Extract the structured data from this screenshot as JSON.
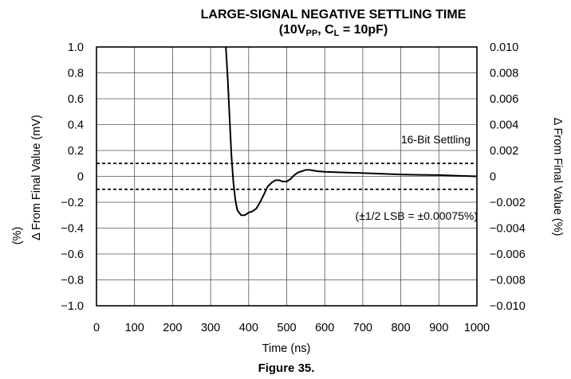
{
  "chart_data": {
    "type": "line",
    "title_line1": "LARGE-SIGNAL NEGATIVE SETTLING TIME",
    "title_line2_prefix": "(10V",
    "title_line2_sub1": "PP",
    "title_line2_mid": ", C",
    "title_line2_sub2": "L",
    "title_line2_suffix": " = 10pF)",
    "xlabel": "Time (ns)",
    "ylabel_left": "Δ From Final Value (mV)",
    "ylabel_left_outer": "(%)",
    "ylabel_right": "Δ From Final Value (%)",
    "xlim": [
      0,
      1000
    ],
    "ylim_left": [
      -1.0,
      1.0
    ],
    "ylim_right": [
      -0.01,
      0.01
    ],
    "x_ticks": [
      "0",
      "100",
      "200",
      "300",
      "400",
      "500",
      "600",
      "700",
      "800",
      "900",
      "1000"
    ],
    "y_ticks_left": [
      "1.0",
      "0.8",
      "0.6",
      "0.4",
      "0.2",
      "0",
      "−0.2",
      "−0.4",
      "−0.6",
      "−0.8",
      "−1.0"
    ],
    "y_ticks_right": [
      "0.010",
      "0.008",
      "0.006",
      "0.004",
      "0.002",
      "0",
      "−0.002",
      "−0.004",
      "−0.006",
      "−0.008",
      "−0.010"
    ],
    "grid": true,
    "settling_band": [
      -0.1,
      0.1
    ],
    "annotations": {
      "band_label": "16-Bit Settling",
      "lsb_label": "(±1/2 LSB = ±0.00075%)"
    },
    "caption": "Figure 35.",
    "series": [
      {
        "x": [
          340,
          345,
          350,
          355,
          360,
          365,
          370,
          380,
          390,
          400,
          410,
          420,
          430,
          440,
          450,
          460,
          470,
          480,
          490,
          500,
          510,
          520,
          530,
          540,
          550,
          560,
          580,
          600,
          650,
          700,
          750,
          800,
          850,
          900,
          950,
          1000
        ],
        "y": [
          1.0,
          0.75,
          0.45,
          0.15,
          -0.05,
          -0.18,
          -0.26,
          -0.3,
          -0.3,
          -0.28,
          -0.27,
          -0.25,
          -0.2,
          -0.14,
          -0.08,
          -0.05,
          -0.03,
          -0.03,
          -0.04,
          -0.04,
          -0.02,
          0.01,
          0.03,
          0.04,
          0.05,
          0.05,
          0.04,
          0.035,
          0.03,
          0.025,
          0.02,
          0.015,
          0.012,
          0.01,
          0.005,
          0.0
        ]
      }
    ]
  }
}
